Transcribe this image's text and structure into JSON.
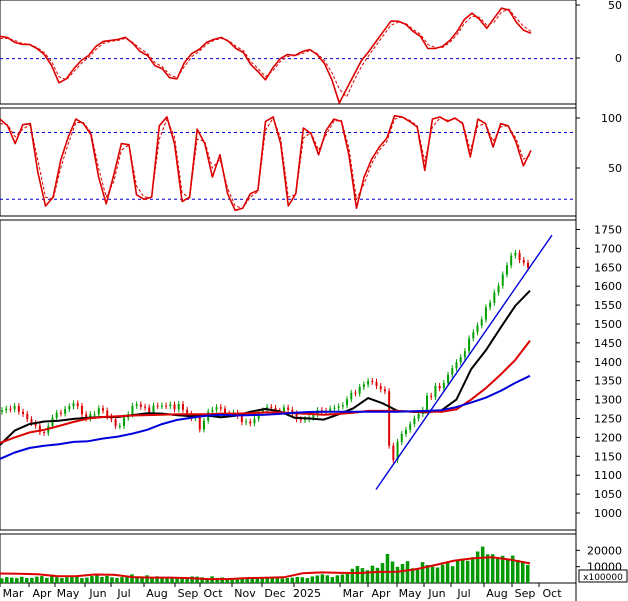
{
  "chart_data": [
    {
      "panel": "top-oscillator",
      "type": "line",
      "ylim": [
        -45,
        58
      ],
      "y_ticks": [
        "50",
        "0"
      ],
      "reference_lines": [
        0
      ],
      "series": [
        {
          "color": "#dd0000",
          "style": "solid",
          "values": [
            22,
            21,
            16,
            14,
            14,
            10,
            4,
            -7,
            -24,
            -20,
            -10,
            -2,
            3,
            12,
            17,
            18,
            19,
            21,
            15,
            7,
            3,
            -7,
            -10,
            -19,
            -20,
            -4,
            5,
            9,
            16,
            19,
            21,
            17,
            10,
            6,
            -6,
            -13,
            -21,
            -9,
            0,
            4,
            3,
            7,
            9,
            4,
            -5,
            -21,
            -44,
            -30,
            -16,
            -2,
            7,
            17,
            27,
            37,
            37,
            34,
            27,
            22,
            10,
            10,
            12,
            18,
            27,
            39,
            45,
            39,
            30,
            40,
            50,
            48,
            36,
            28,
            25
          ]
        },
        {
          "color": "#dd0000",
          "style": "dashed",
          "values": [
            20,
            20,
            18,
            15,
            14,
            11,
            6,
            -3,
            -18,
            -21,
            -13,
            -5,
            1,
            9,
            15,
            17,
            18,
            20,
            16,
            10,
            5,
            -4,
            -8,
            -16,
            -19,
            -8,
            2,
            7,
            14,
            18,
            20,
            18,
            12,
            8,
            -3,
            -10,
            -18,
            -12,
            -3,
            2,
            3,
            5,
            8,
            5,
            -2,
            -14,
            -30,
            -38,
            -22,
            -8,
            3,
            13,
            23,
            33,
            36,
            35,
            29,
            24,
            14,
            11,
            11,
            16,
            24,
            35,
            42,
            41,
            33,
            36,
            46,
            49,
            40,
            32,
            27
          ]
        }
      ]
    },
    {
      "panel": "stochastic",
      "type": "line",
      "ylim": [
        5,
        102
      ],
      "y_ticks": [
        "100",
        "50"
      ],
      "reference_lines": [
        80,
        20
      ],
      "series": [
        {
          "color": "#dd0000",
          "style": "solid",
          "values": [
            92,
            86,
            70,
            87,
            88,
            44,
            14,
            22,
            55,
            76,
            92,
            88,
            78,
            40,
            16,
            42,
            70,
            69,
            24,
            20,
            22,
            86,
            94,
            70,
            18,
            22,
            83,
            70,
            40,
            60,
            25,
            10,
            12,
            25,
            28,
            90,
            94,
            70,
            14,
            25,
            84,
            79,
            60,
            82,
            92,
            90,
            60,
            12,
            40,
            56,
            67,
            75,
            95,
            94,
            90,
            85,
            46,
            92,
            94,
            90,
            93,
            88,
            58,
            92,
            88,
            67,
            88,
            86,
            72,
            50,
            64
          ]
        },
        {
          "color": "#dd0000",
          "style": "dashed",
          "values": [
            88,
            87,
            76,
            83,
            87,
            55,
            22,
            20,
            48,
            70,
            89,
            89,
            80,
            48,
            22,
            36,
            64,
            69,
            32,
            22,
            22,
            74,
            92,
            76,
            26,
            21,
            74,
            72,
            48,
            56,
            30,
            14,
            12,
            22,
            27,
            82,
            93,
            75,
            22,
            24,
            75,
            80,
            64,
            78,
            90,
            91,
            66,
            20,
            34,
            52,
            64,
            72,
            92,
            94,
            91,
            86,
            54,
            85,
            93,
            91,
            92,
            89,
            64,
            86,
            88,
            72,
            85,
            86,
            75,
            56,
            60
          ]
        }
      ]
    },
    {
      "panel": "price",
      "type": "line",
      "ylim": [
        955,
        1775
      ],
      "y_ticks": [
        "1750",
        "1700",
        "1650",
        "1600",
        "1550",
        "1500",
        "1450",
        "1400",
        "1350",
        "1300",
        "1250",
        "1200",
        "1150",
        "1100",
        "1050",
        "1000"
      ],
      "x_labels": [
        "Mar",
        "Apr",
        "May",
        "Jun",
        "Jul",
        "Aug",
        "Sep",
        "Oct",
        "Nov",
        "Dec",
        "2025",
        "Mar",
        "Apr",
        "May",
        "Jun",
        "Jul",
        "Aug",
        "Sep",
        "Oct"
      ],
      "close": [
        1272,
        1276,
        1274,
        1283,
        1268,
        1262,
        1248,
        1238,
        1231,
        1214,
        1212,
        1230,
        1252,
        1265,
        1263,
        1275,
        1282,
        1290,
        1283,
        1261,
        1250,
        1261,
        1261,
        1277,
        1271,
        1255,
        1248,
        1230,
        1230,
        1252,
        1261,
        1283,
        1287,
        1281,
        1279,
        1265,
        1284,
        1283,
        1284,
        1283,
        1287,
        1274,
        1288,
        1273,
        1262,
        1251,
        1255,
        1221,
        1244,
        1268,
        1273,
        1280,
        1276,
        1263,
        1262,
        1265,
        1257,
        1240,
        1242,
        1237,
        1249,
        1265,
        1271,
        1280,
        1278,
        1270,
        1268,
        1279,
        1273,
        1263,
        1248,
        1246,
        1248,
        1252,
        1260,
        1272,
        1270,
        1268,
        1276,
        1278,
        1282,
        1285,
        1301,
        1318,
        1316,
        1333,
        1340,
        1349,
        1347,
        1336,
        1327,
        1322,
        1178,
        1140,
        1188,
        1209,
        1220,
        1235,
        1250,
        1262,
        1273,
        1310,
        1307,
        1336,
        1330,
        1344,
        1366,
        1383,
        1399,
        1412,
        1428,
        1462,
        1478,
        1496,
        1512,
        1544,
        1556,
        1583,
        1601,
        1631,
        1655,
        1681,
        1688,
        1669,
        1662,
        1649
      ],
      "series": [
        {
          "color": "#000000",
          "style": "solid",
          "values": [
            1180,
            1218,
            1235,
            1242,
            1244,
            1249,
            1252,
            1254,
            1254,
            1259,
            1264,
            1263,
            1259,
            1256,
            1258,
            1253,
            1257,
            1268,
            1275,
            1269,
            1252,
            1250,
            1247,
            1261,
            1277,
            1304,
            1290,
            1270,
            1268,
            1266,
            1272,
            1300,
            1380,
            1430,
            1490,
            1548,
            1588
          ]
        },
        {
          "color": "#dd0000",
          "style": "solid",
          "values": [
            1185,
            1200,
            1213,
            1220,
            1230,
            1241,
            1250,
            1254,
            1256,
            1258,
            1259,
            1260,
            1261,
            1261,
            1261,
            1263,
            1263,
            1264,
            1266,
            1266,
            1264,
            1262,
            1260,
            1262,
            1265,
            1270,
            1270,
            1270,
            1268,
            1268,
            1268,
            1274,
            1300,
            1330,
            1366,
            1405,
            1456
          ]
        },
        {
          "color": "#0000dd",
          "style": "solid",
          "values": [
            1143,
            1160,
            1172,
            1178,
            1182,
            1188,
            1190,
            1197,
            1202,
            1210,
            1220,
            1235,
            1246,
            1252,
            1257,
            1260,
            1258,
            1259,
            1260,
            1262,
            1265,
            1267,
            1268,
            1268,
            1268,
            1268,
            1268,
            1268,
            1269,
            1270,
            1272,
            1280,
            1292,
            1305,
            1323,
            1344,
            1363
          ]
        },
        {
          "color": "#0000dd",
          "style": "solid",
          "values": [
            1062,
            1735
          ]
        }
      ]
    },
    {
      "panel": "volume",
      "type": "bar",
      "ylim": [
        0,
        30000
      ],
      "y_ticks": [
        "20000",
        "10000"
      ],
      "unit": "x100000",
      "values": [
        2800,
        3600,
        3300,
        3000,
        3800,
        3100,
        3200,
        3900,
        4200,
        3100,
        5200,
        3600,
        3100,
        3500,
        3600,
        3700,
        3000,
        3300,
        4200,
        4900,
        3700,
        4400,
        3500,
        3100,
        3600,
        4300,
        5300,
        4000,
        3500,
        4700,
        3600,
        4100,
        2800,
        3700,
        3300,
        3600,
        3500,
        2800,
        4000,
        3900,
        3500,
        2800,
        4100,
        3100,
        3400,
        2900,
        2600,
        3200,
        3000,
        2800,
        3100,
        2900,
        3600,
        3600,
        2800,
        3300,
        2800,
        3000,
        3300,
        3700,
        3500,
        3000,
        4000,
        4600,
        5300,
        4700,
        3600,
        4700,
        5200,
        5500,
        8700,
        10400,
        9100,
        7800,
        10600,
        9300,
        12200,
        17800,
        13200,
        9900,
        11600,
        13400,
        9000,
        9100,
        12800,
        11000,
        10000,
        9500,
        11200,
        12600,
        10300,
        13800,
        15000,
        13600,
        15800,
        19300,
        22300,
        17600,
        17600,
        15800,
        16700,
        14900,
        16800,
        14100,
        12900,
        11100
      ],
      "series": [
        {
          "color": "#dd0000",
          "style": "solid",
          "values": [
            5800,
            5700,
            5400,
            4200,
            4100,
            5200,
            5000,
            3600,
            3300,
            3300,
            3000,
            2400,
            2400,
            3000,
            3200,
            3500,
            6000,
            6500,
            6200,
            6100,
            6800,
            6900,
            8500,
            11000,
            13700,
            15200,
            15800,
            14200,
            12000
          ]
        }
      ]
    }
  ]
}
